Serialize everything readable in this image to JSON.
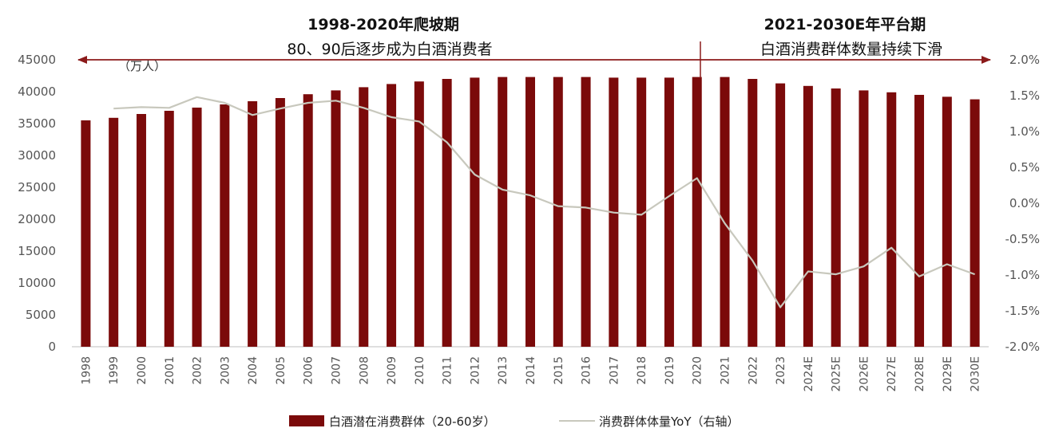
{
  "chart_data": {
    "type": "bar+line",
    "categories": [
      "1998",
      "1999",
      "2000",
      "2001",
      "2002",
      "2003",
      "2004",
      "2005",
      "2006",
      "2007",
      "2008",
      "2009",
      "2010",
      "2011",
      "2012",
      "2013",
      "2014",
      "2015",
      "2016",
      "2017",
      "2018",
      "2019",
      "2020",
      "2021",
      "2022",
      "2023",
      "2024E",
      "2025E",
      "2026E",
      "2027E",
      "2028E",
      "2029E",
      "2030E"
    ],
    "series": [
      {
        "name": "白酒潜在消费群体（20-60岁）",
        "kind": "bar",
        "axis": "left",
        "color": "#7b0a0a",
        "values": [
          35500,
          35900,
          36500,
          37000,
          37500,
          38000,
          38500,
          39000,
          39600,
          40200,
          40700,
          41200,
          41600,
          42000,
          42200,
          42300,
          42300,
          42300,
          42300,
          42200,
          42200,
          42200,
          42300,
          42300,
          42000,
          41300,
          40900,
          40500,
          40200,
          39900,
          39500,
          39200,
          38800
        ]
      },
      {
        "name": "消费群体体量YoY（右轴）",
        "kind": "line",
        "axis": "right",
        "color": "#c8c8bd",
        "values": [
          null,
          1.32,
          1.34,
          1.33,
          1.48,
          1.4,
          1.23,
          1.32,
          1.4,
          1.43,
          1.33,
          1.2,
          1.14,
          0.85,
          0.4,
          0.19,
          0.11,
          -0.04,
          -0.06,
          -0.13,
          -0.16,
          0.1,
          0.35,
          -0.28,
          -0.8,
          -1.45,
          -0.95,
          -0.99,
          -0.88,
          -0.62,
          -1.02,
          -0.85,
          -0.99
        ]
      }
    ],
    "y_left": {
      "ylim": [
        0,
        45000
      ],
      "ticks": [
        "0",
        "5000",
        "10000",
        "15000",
        "20000",
        "25000",
        "30000",
        "35000",
        "40000",
        "45000"
      ],
      "unit": "（万人）"
    },
    "y_right": {
      "ylim": [
        -2.0,
        2.0
      ],
      "ticks": [
        "-2.0%",
        "-1.5%",
        "-1.0%",
        "-0.5%",
        "0.0%",
        "0.5%",
        "1.0%",
        "1.5%",
        "2.0%"
      ]
    },
    "annotations": {
      "period1_title": "1998-2020年爬坡期",
      "period1_subtitle": "80、90后逐步成为白酒消费者",
      "period2_title": "2021-2030E年平台期",
      "period2_subtitle": "白酒消费群体数量持续下滑"
    },
    "legend_position": "bottom-center",
    "arrow_color": "#8b1a1a"
  }
}
